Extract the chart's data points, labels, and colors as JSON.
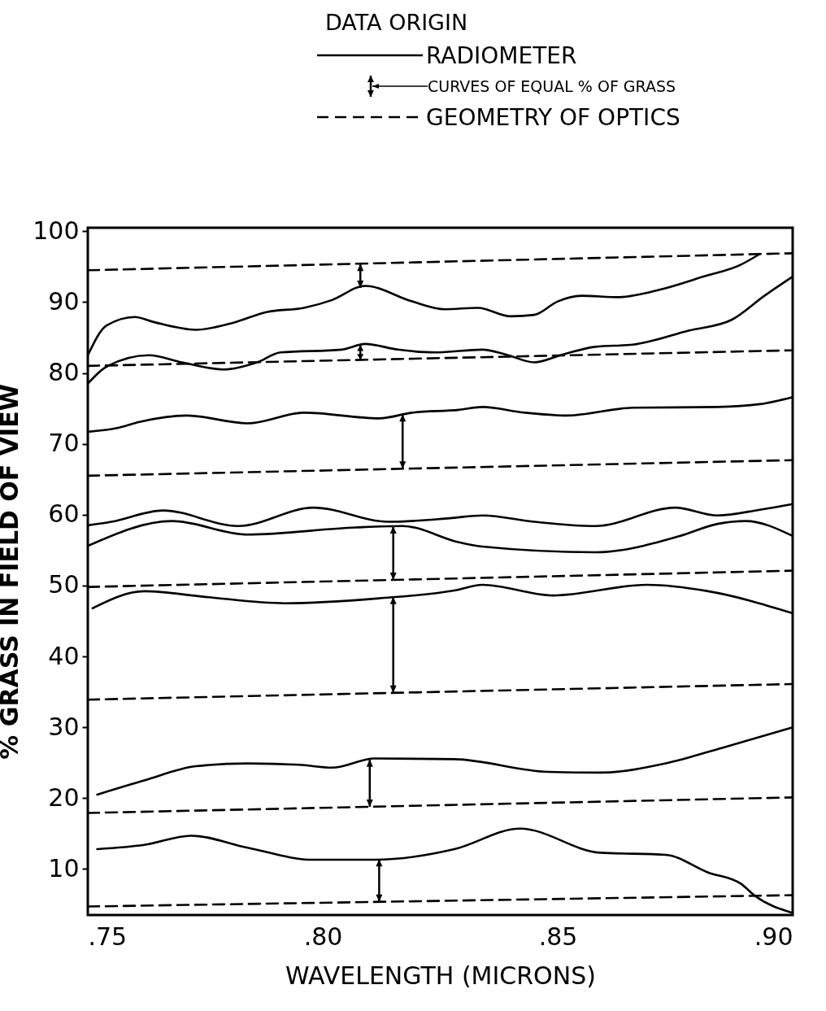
{
  "chart_data": {
    "type": "line",
    "legend_title": "DATA ORIGIN",
    "xlabel": "WAVELENGTH (MICRONS)",
    "ylabel": "% GRASS IN FIELD OF VIEW",
    "annotations": [
      "CURVES OF EQUAL % OF GRASS"
    ],
    "legend": "top",
    "grid": false,
    "xlim": [
      0.75,
      0.9
    ],
    "ylim": [
      3.5,
      100.5
    ],
    "xticks": [
      {
        "value": 0.75,
        "label": ".75"
      },
      {
        "value": 0.8,
        "label": ".80"
      },
      {
        "value": 0.85,
        "label": ".85"
      },
      {
        "value": 0.9,
        "label": ".90"
      }
    ],
    "yticks": [
      10,
      20,
      30,
      40,
      50,
      60,
      70,
      80,
      90,
      100
    ],
    "series": [
      {
        "name": "RADIOMETER",
        "color": "#000000",
        "line_style": "solid",
        "x": [
          0.75,
          0.754,
          0.76,
          0.764,
          0.773,
          0.781,
          0.788,
          0.796,
          0.802,
          0.809,
          0.819,
          0.826,
          0.833,
          0.84,
          0.845,
          0.85,
          0.855,
          0.863,
          0.872,
          0.881,
          0.889,
          0.893
        ],
        "values": [
          82.5,
          86.7,
          87.9,
          87.2,
          86.1,
          87.1,
          88.6,
          89.2,
          90.3,
          92.3,
          90.1,
          89.0,
          89.2,
          88.0,
          88.2,
          90.1,
          90.9,
          90.7,
          91.8,
          93.6,
          95.3,
          96.8
        ]
      },
      {
        "color": "#000000",
        "line_style": "solid",
        "x": [
          0.75,
          0.754,
          0.763,
          0.77,
          0.779,
          0.786,
          0.791,
          0.804,
          0.809,
          0.816,
          0.824,
          0.834,
          0.839,
          0.845,
          0.851,
          0.858,
          0.866,
          0.878,
          0.887,
          0.894,
          0.9
        ],
        "values": [
          78.5,
          80.9,
          82.5,
          81.5,
          80.5,
          81.5,
          82.9,
          83.3,
          84.1,
          83.3,
          82.9,
          83.3,
          82.6,
          81.5,
          82.6,
          83.7,
          84.0,
          86.0,
          87.5,
          90.9,
          93.6
        ]
      },
      {
        "color": "#000000",
        "line_style": "solid",
        "x": [
          0.75,
          0.756,
          0.761,
          0.771,
          0.784,
          0.796,
          0.812,
          0.819,
          0.829,
          0.834,
          0.843,
          0.852,
          0.866,
          0.884,
          0.893,
          0.9
        ],
        "values": [
          71.7,
          72.2,
          73.1,
          74.0,
          72.9,
          74.4,
          73.6,
          74.4,
          74.8,
          75.2,
          74.4,
          74.0,
          75.1,
          75.2,
          75.6,
          76.6
        ]
      },
      {
        "color": "#000000",
        "line_style": "solid",
        "x": [
          0.75,
          0.755,
          0.766,
          0.782,
          0.798,
          0.814,
          0.827,
          0.834,
          0.845,
          0.858,
          0.875,
          0.884,
          0.893,
          0.9
        ],
        "values": [
          58.5,
          59.0,
          60.6,
          58.4,
          61.0,
          59.0,
          59.5,
          59.9,
          59.0,
          58.4,
          61.0,
          59.9,
          60.7,
          61.5
        ]
      },
      {
        "color": "#000000",
        "line_style": "solid",
        "x": [
          0.75,
          0.768,
          0.784,
          0.807,
          0.817,
          0.829,
          0.834,
          0.858,
          0.876,
          0.884,
          0.89,
          0.9
        ],
        "values": [
          55.6,
          59.1,
          57.2,
          58.2,
          58.4,
          56.1,
          55.5,
          54.7,
          57.0,
          58.7,
          59.1,
          57.0
        ]
      },
      {
        "color": "#000000",
        "line_style": "solid",
        "x": [
          0.751,
          0.762,
          0.775,
          0.792,
          0.812,
          0.828,
          0.834,
          0.849,
          0.869,
          0.882,
          0.9
        ],
        "values": [
          46.8,
          49.2,
          48.4,
          47.5,
          48.2,
          49.3,
          50.1,
          48.6,
          50.1,
          49.2,
          46.1
        ]
      },
      {
        "color": "#000000",
        "line_style": "solid",
        "x": [
          0.752,
          0.762,
          0.773,
          0.784,
          0.795,
          0.802,
          0.811,
          0.828,
          0.848,
          0.859,
          0.873,
          0.885,
          0.9
        ],
        "values": [
          20.5,
          22.5,
          24.5,
          24.9,
          24.7,
          24.3,
          25.6,
          25.5,
          23.7,
          23.6,
          24.9,
          27.1,
          30.0
        ]
      },
      {
        "color": "#000000",
        "line_style": "solid",
        "x": [
          0.752,
          0.762,
          0.772,
          0.784,
          0.798,
          0.811,
          0.828,
          0.842,
          0.859,
          0.873,
          0.882,
          0.889,
          0.892,
          0.9
        ],
        "values": [
          12.8,
          13.4,
          14.7,
          13.0,
          11.3,
          11.3,
          12.8,
          15.7,
          12.3,
          12.0,
          9.5,
          7.9,
          6.2,
          3.8
        ]
      },
      {
        "name": "GEOMETRY OF OPTICS",
        "color": "#000000",
        "line_style": "dashed",
        "x": [
          0.75,
          0.9
        ],
        "values": [
          94.5,
          96.9
        ]
      },
      {
        "color": "#000000",
        "line_style": "dashed",
        "x": [
          0.75,
          0.9
        ],
        "values": [
          81.0,
          83.2
        ]
      },
      {
        "color": "#000000",
        "line_style": "dashed",
        "x": [
          0.75,
          0.9
        ],
        "values": [
          65.5,
          67.7
        ]
      },
      {
        "color": "#000000",
        "line_style": "dashed",
        "x": [
          0.75,
          0.9
        ],
        "values": [
          49.8,
          52.1
        ]
      },
      {
        "color": "#000000",
        "line_style": "dashed",
        "x": [
          0.75,
          0.9
        ],
        "values": [
          33.9,
          36.1
        ]
      },
      {
        "color": "#000000",
        "line_style": "dashed",
        "x": [
          0.75,
          0.9
        ],
        "values": [
          17.9,
          20.1
        ]
      },
      {
        "color": "#000000",
        "line_style": "dashed",
        "x": [
          0.75,
          0.9
        ],
        "values": [
          4.7,
          6.3
        ]
      }
    ]
  }
}
